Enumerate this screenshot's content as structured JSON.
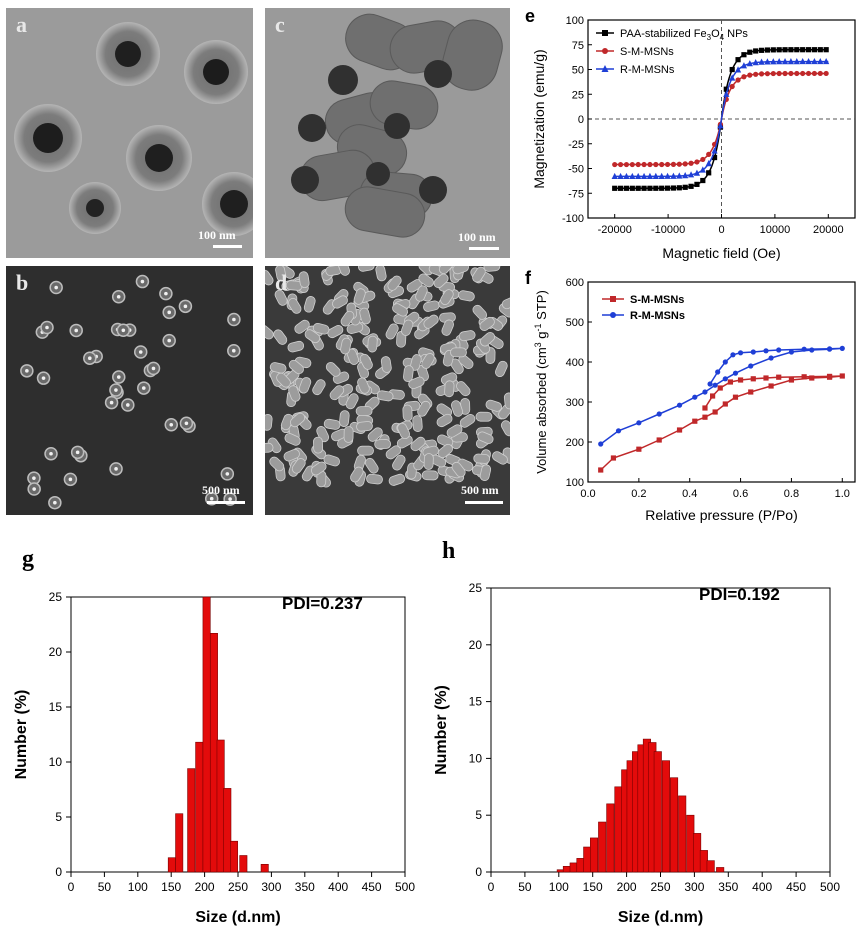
{
  "panels": {
    "a": {
      "letter": "a",
      "scale": "100 nm"
    },
    "b": {
      "letter": "b",
      "scale": "500 nm"
    },
    "c": {
      "letter": "c",
      "scale": "100 nm"
    },
    "d": {
      "letter": "d",
      "scale": "500 nm"
    },
    "e": {
      "letter": "e"
    },
    "f": {
      "letter": "f"
    },
    "g": {
      "letter": "g"
    },
    "h": {
      "letter": "h"
    }
  },
  "chart_data": [
    {
      "id": "e",
      "type": "line",
      "xlabel": "Magnetic field (Oe)",
      "ylabel": "Magnetization (emu/g)",
      "xlim": [
        -25000,
        25000
      ],
      "ylim": [
        -100,
        100
      ],
      "xticks": [
        -20000,
        -10000,
        0,
        10000,
        20000
      ],
      "yticks": [
        -100,
        -75,
        -50,
        -25,
        0,
        25,
        50,
        75,
        100
      ],
      "xtick_labels": [
        "-20000",
        "-10000",
        "0",
        "10000",
        "20000"
      ],
      "ytick_labels": [
        "-100",
        "-75",
        "-50",
        "-25",
        "0",
        "25",
        "50",
        "75",
        "100"
      ],
      "legend_position": "top-left",
      "series": [
        {
          "name": "PAA-stabilized Fe3O4 NPs",
          "name_main": "PAA-stabilized Fe",
          "name_sub": "3",
          "name_mid": "O",
          "name_sub2": "4",
          "name_end": " NPs",
          "color": "#000000",
          "marker": "square",
          "saturation": 70
        },
        {
          "name": "S-M-MSNs",
          "color": "#c0282a",
          "marker": "circle",
          "saturation": 46
        },
        {
          "name": "R-M-MSNs",
          "color": "#1f3fd6",
          "marker": "triangle",
          "saturation": 58
        }
      ]
    },
    {
      "id": "f",
      "type": "line",
      "xlabel": "Relative pressure (P/Po)",
      "ylabel": "Volume absorbed (cm3 g-1 STP)",
      "ylabel_main": "Volume absorbed (cm",
      "ylabel_sup1": "3",
      "ylabel_mid": " g",
      "ylabel_sup2": "-1",
      "ylabel_end": " STP)",
      "xlim": [
        0,
        1.05
      ],
      "ylim": [
        100,
        600
      ],
      "xticks": [
        0.0,
        0.2,
        0.4,
        0.6,
        0.8,
        1.0
      ],
      "yticks": [
        100,
        200,
        300,
        400,
        500,
        600
      ],
      "xtick_labels": [
        "0.0",
        "0.2",
        "0.4",
        "0.6",
        "0.8",
        "1.0"
      ],
      "ytick_labels": [
        "100",
        "200",
        "300",
        "400",
        "500",
        "600"
      ],
      "legend_position": "top-left",
      "series": [
        {
          "name": "S-M-MSNs",
          "color": "#c0282a",
          "marker": "square",
          "x": [
            0.05,
            0.1,
            0.2,
            0.28,
            0.36,
            0.42,
            0.46,
            0.5,
            0.54,
            0.58,
            0.64,
            0.72,
            0.8,
            0.88,
            0.95,
            1.0,
            0.95,
            0.85,
            0.75,
            0.7,
            0.65,
            0.6,
            0.56,
            0.52,
            0.49,
            0.46
          ],
          "y": [
            130,
            160,
            182,
            205,
            230,
            252,
            262,
            275,
            295,
            312,
            325,
            340,
            355,
            360,
            362,
            365,
            364,
            363,
            362,
            360,
            358,
            355,
            350,
            335,
            315,
            285
          ]
        },
        {
          "name": "R-M-MSNs",
          "color": "#1f3fd6",
          "marker": "circle",
          "x": [
            0.05,
            0.12,
            0.2,
            0.28,
            0.36,
            0.42,
            0.46,
            0.5,
            0.54,
            0.58,
            0.64,
            0.72,
            0.8,
            0.88,
            0.95,
            1.0,
            0.95,
            0.85,
            0.75,
            0.7,
            0.65,
            0.6,
            0.57,
            0.54,
            0.51,
            0.48
          ],
          "y": [
            195,
            228,
            248,
            270,
            292,
            312,
            325,
            342,
            358,
            372,
            390,
            410,
            425,
            430,
            432,
            434,
            433,
            432,
            430,
            428,
            425,
            423,
            418,
            400,
            375,
            345
          ]
        }
      ]
    },
    {
      "id": "g",
      "type": "bar",
      "annotation": "PDI=0.237",
      "xlabel": "Size (d.nm)",
      "ylabel": "Number (%)",
      "xlim": [
        0,
        500
      ],
      "ylim": [
        0,
        25
      ],
      "xticks": [
        0,
        50,
        100,
        150,
        200,
        250,
        300,
        350,
        400,
        450,
        500
      ],
      "yticks": [
        0,
        5,
        10,
        15,
        20,
        25
      ],
      "xtick_labels": [
        "0",
        "50",
        "100",
        "150",
        "200",
        "250",
        "300",
        "350",
        "400",
        "450",
        "500"
      ],
      "ytick_labels": [
        "0",
        "5",
        "10",
        "15",
        "20",
        "25"
      ],
      "color": "#e30b0b",
      "bin_width": 11,
      "x": [
        151,
        162,
        180,
        192,
        203,
        214,
        224,
        234,
        244,
        258,
        290
      ],
      "values": [
        1.3,
        5.3,
        9.4,
        11.8,
        25.0,
        21.7,
        12.0,
        7.6,
        2.8,
        1.5,
        0.7
      ]
    },
    {
      "id": "h",
      "type": "bar",
      "annotation": "PDI=0.192",
      "xlabel": "Size (d.nm)",
      "ylabel": "Number (%)",
      "xlim": [
        0,
        500
      ],
      "ylim": [
        0,
        25
      ],
      "xticks": [
        0,
        50,
        100,
        150,
        200,
        250,
        300,
        350,
        400,
        450,
        500
      ],
      "yticks": [
        0,
        5,
        10,
        15,
        20,
        25
      ],
      "xtick_labels": [
        "0",
        "50",
        "100",
        "150",
        "200",
        "250",
        "300",
        "350",
        "400",
        "450",
        "500"
      ],
      "ytick_labels": [
        "0",
        "5",
        "10",
        "15",
        "20",
        "25"
      ],
      "color": "#e30b0b",
      "bin_width": 11,
      "x": [
        103,
        112,
        122,
        132,
        142,
        152,
        164,
        176,
        188,
        198,
        206,
        214,
        222,
        230,
        238,
        246,
        258,
        270,
        282,
        294,
        304,
        314,
        324,
        338
      ],
      "values": [
        0.2,
        0.5,
        0.8,
        1.2,
        2.2,
        3.0,
        4.4,
        6.0,
        7.5,
        9.0,
        9.8,
        10.6,
        11.2,
        11.7,
        11.4,
        10.6,
        9.8,
        8.3,
        6.7,
        5.0,
        3.4,
        1.9,
        1.0,
        0.4
      ]
    }
  ]
}
